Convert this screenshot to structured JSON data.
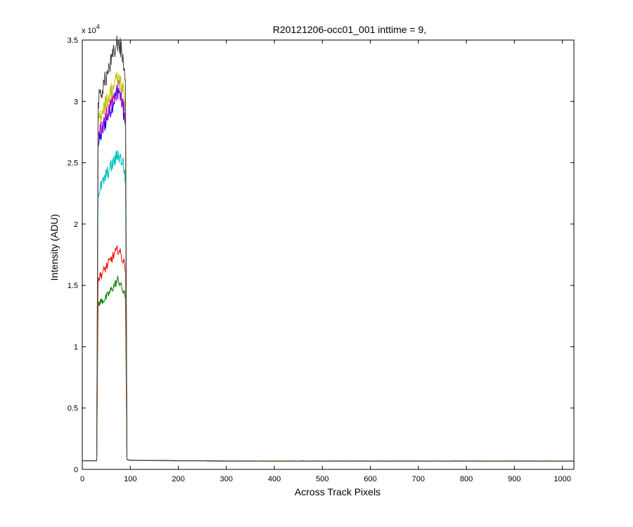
{
  "chart_data": {
    "type": "line",
    "title": "R20121206-occ01_001 inttime = 9,",
    "xlabel": "Across Track Pixels",
    "ylabel": "Intensity (ADU)",
    "y_exponent_label": "x 10",
    "y_exponent_power": "4",
    "xlim": [
      0,
      1024
    ],
    "ylim": [
      0,
      35000
    ],
    "xticks": [
      0,
      100,
      200,
      300,
      400,
      500,
      600,
      700,
      800,
      900,
      1000
    ],
    "xtick_labels": [
      "0",
      "100",
      "200",
      "300",
      "400",
      "500",
      "600",
      "700",
      "800",
      "900",
      "1000"
    ],
    "yticks": [
      0,
      5000,
      10000,
      15000,
      20000,
      25000,
      30000,
      35000
    ],
    "ytick_labels": [
      "0",
      "0.5",
      "1",
      "1.5",
      "2",
      "2.5",
      "3",
      "3.5"
    ],
    "grid": false,
    "series": [
      {
        "color": "#0000ff",
        "values": [
          [
            0,
            700
          ],
          [
            25,
            700
          ],
          [
            30,
            720
          ],
          [
            33,
            26500
          ],
          [
            50,
            28500
          ],
          [
            75,
            31000
          ],
          [
            85,
            29500
          ],
          [
            90,
            28000
          ],
          [
            93,
            800
          ],
          [
            100,
            740
          ],
          [
            300,
            680
          ],
          [
            600,
            680
          ],
          [
            1024,
            680
          ]
        ]
      },
      {
        "color": "#008000",
        "values": [
          [
            0,
            700
          ],
          [
            25,
            700
          ],
          [
            30,
            720
          ],
          [
            33,
            13500
          ],
          [
            50,
            14000
          ],
          [
            75,
            15500
          ],
          [
            85,
            14500
          ],
          [
            90,
            14000
          ],
          [
            93,
            800
          ],
          [
            100,
            740
          ],
          [
            300,
            680
          ],
          [
            600,
            680
          ],
          [
            1024,
            680
          ]
        ]
      },
      {
        "color": "#ff0000",
        "values": [
          [
            0,
            700
          ],
          [
            25,
            700
          ],
          [
            30,
            720
          ],
          [
            33,
            15500
          ],
          [
            50,
            16500
          ],
          [
            75,
            18000
          ],
          [
            85,
            17000
          ],
          [
            90,
            16500
          ],
          [
            93,
            800
          ],
          [
            100,
            740
          ],
          [
            300,
            680
          ],
          [
            600,
            680
          ],
          [
            1024,
            680
          ]
        ]
      },
      {
        "color": "#00bfbf",
        "values": [
          [
            0,
            700
          ],
          [
            25,
            700
          ],
          [
            30,
            720
          ],
          [
            33,
            22500
          ],
          [
            50,
            24000
          ],
          [
            75,
            25700
          ],
          [
            85,
            25000
          ],
          [
            90,
            23500
          ],
          [
            93,
            800
          ],
          [
            100,
            740
          ],
          [
            300,
            680
          ],
          [
            600,
            680
          ],
          [
            1024,
            680
          ]
        ]
      },
      {
        "color": "#bf00bf",
        "values": [
          [
            0,
            700
          ],
          [
            25,
            700
          ],
          [
            30,
            720
          ],
          [
            33,
            27000
          ],
          [
            50,
            29000
          ],
          [
            75,
            31000
          ],
          [
            85,
            30000
          ],
          [
            90,
            28500
          ],
          [
            93,
            800
          ],
          [
            100,
            740
          ],
          [
            300,
            680
          ],
          [
            600,
            680
          ],
          [
            1024,
            680
          ]
        ]
      },
      {
        "color": "#bfbf00",
        "values": [
          [
            0,
            700
          ],
          [
            25,
            700
          ],
          [
            30,
            720
          ],
          [
            33,
            28500
          ],
          [
            50,
            30000
          ],
          [
            75,
            32000
          ],
          [
            85,
            31000
          ],
          [
            90,
            29500
          ],
          [
            93,
            800
          ],
          [
            100,
            740
          ],
          [
            300,
            680
          ],
          [
            600,
            680
          ],
          [
            1024,
            680
          ]
        ]
      },
      {
        "color": "#404040",
        "values": [
          [
            0,
            700
          ],
          [
            25,
            700
          ],
          [
            30,
            720
          ],
          [
            33,
            30000
          ],
          [
            50,
            32000
          ],
          [
            75,
            35000
          ],
          [
            85,
            33500
          ],
          [
            90,
            31500
          ],
          [
            93,
            800
          ],
          [
            100,
            740
          ],
          [
            300,
            680
          ],
          [
            600,
            680
          ],
          [
            1024,
            680
          ]
        ]
      }
    ]
  }
}
